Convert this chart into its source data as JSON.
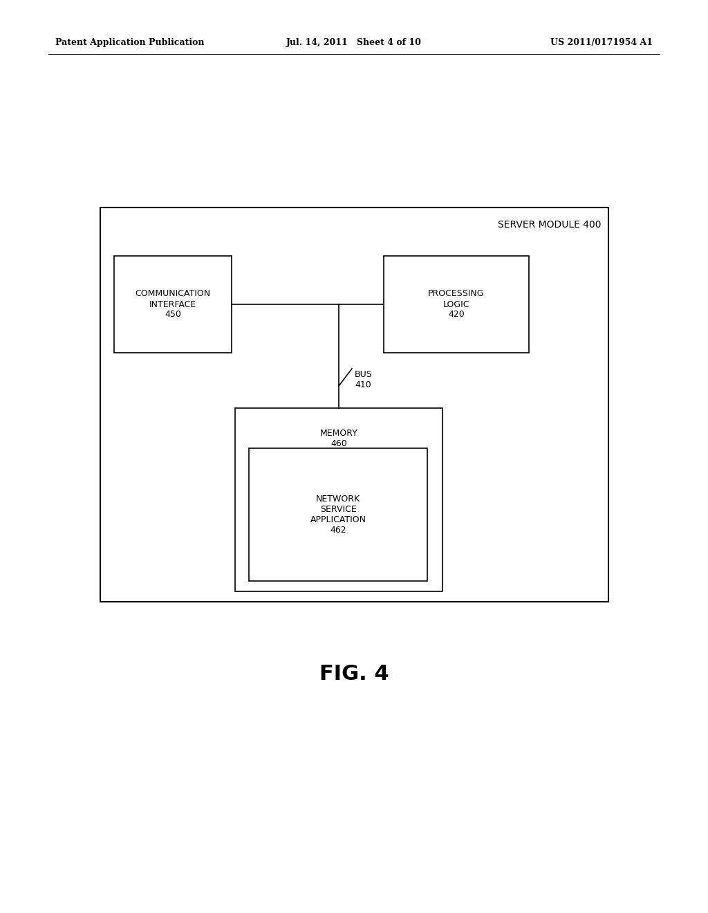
{
  "bg_color": "#ffffff",
  "header_left": "Patent Application Publication",
  "header_mid": "Jul. 14, 2011   Sheet 4 of 10",
  "header_right": "US 2011/0171954 A1",
  "fig_label": "FIG. 4",
  "outer_box_label": "SERVER MODULE 400",
  "comm_interface_label": "COMMUNICATION\nINTERFACE\n450",
  "processing_logic_label": "PROCESSING\nLOGIC\n420",
  "memory_label": "MEMORY\n460",
  "bus_label": "BUS\n410",
  "network_service_label": "NETWORK\nSERVICE\nAPPLICATION\n462"
}
